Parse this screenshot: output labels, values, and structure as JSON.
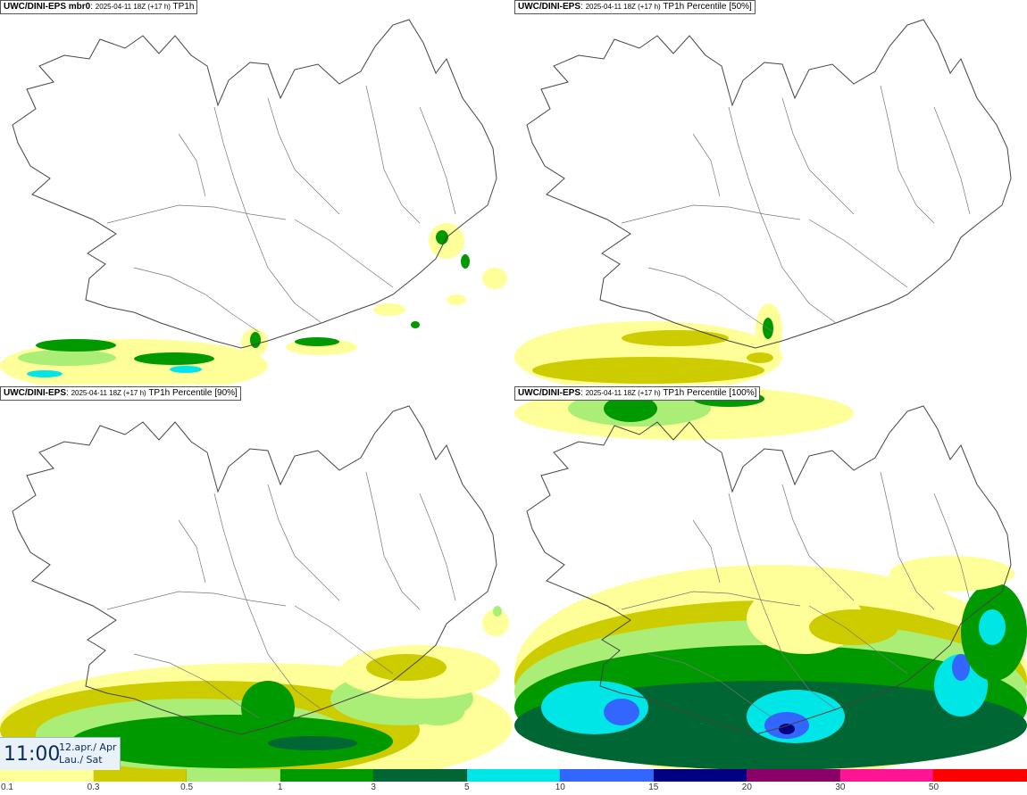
{
  "panels": [
    {
      "model": "UWC/DINI-EPS mbr0",
      "run": "2025-04-11 18Z (+17 h)",
      "field": "TP1h",
      "intensity": "low"
    },
    {
      "model": "UWC/DINI-EPS",
      "run": "2025-04-11 18Z (+17 h)",
      "field": "TP1h Percentile [50%]",
      "intensity": "lowest"
    },
    {
      "model": "UWC/DINI-EPS",
      "run": "2025-04-11 18Z (+17 h)",
      "field": "TP1h Percentile [90%]",
      "intensity": "medium"
    },
    {
      "model": "UWC/DINI-EPS",
      "run": "2025-04-11 18Z (+17 h)",
      "field": "TP1h Percentile [100%]",
      "intensity": "high"
    }
  ],
  "valid_time": {
    "time": "11:00",
    "date_line1": "12.apr./ Apr",
    "date_line2": "Lau./ Sat"
  },
  "legend": {
    "colors": [
      "#ffff99",
      "#cccc00",
      "#aaee77",
      "#009900",
      "#006633",
      "#00e5e5",
      "#3366ff",
      "#000080",
      "#8b0066",
      "#ff1493",
      "#ff0000"
    ],
    "labels": [
      "0.1",
      "0.3",
      "0.5",
      "1",
      "3",
      "5",
      "10",
      "15",
      "20",
      "30",
      "50"
    ]
  }
}
